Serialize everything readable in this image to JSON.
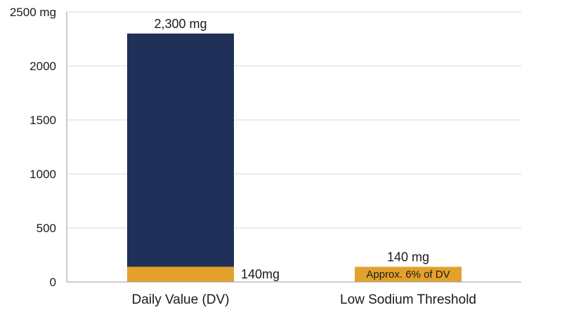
{
  "chart_data": {
    "type": "bar",
    "stacked": true,
    "categories": [
      "Daily Value (DV)",
      "Low Sodium Threshold"
    ],
    "series": [
      {
        "values": [
          140,
          140
        ],
        "color": "#E3A12C"
      },
      {
        "values": [
          2160,
          0
        ],
        "color": "#1F3158"
      }
    ],
    "ylim": [
      0,
      2500
    ],
    "yticks": [
      {
        "value": 0,
        "label": "0"
      },
      {
        "value": 500,
        "label": "500"
      },
      {
        "value": 1000,
        "label": "1000"
      },
      {
        "value": 1500,
        "label": "1500"
      },
      {
        "value": 2000,
        "label": "2000"
      },
      {
        "value": 2500,
        "label": "2500 mg"
      }
    ],
    "grid": true,
    "annotations": {
      "dv_total": "2,300 mg",
      "dv_segment": "140mg",
      "threshold_total": "140 mg",
      "threshold_inner": "Approx. 6% of DV"
    },
    "colors": {
      "grid": "#d9d9d9",
      "axis": "#999999"
    }
  }
}
